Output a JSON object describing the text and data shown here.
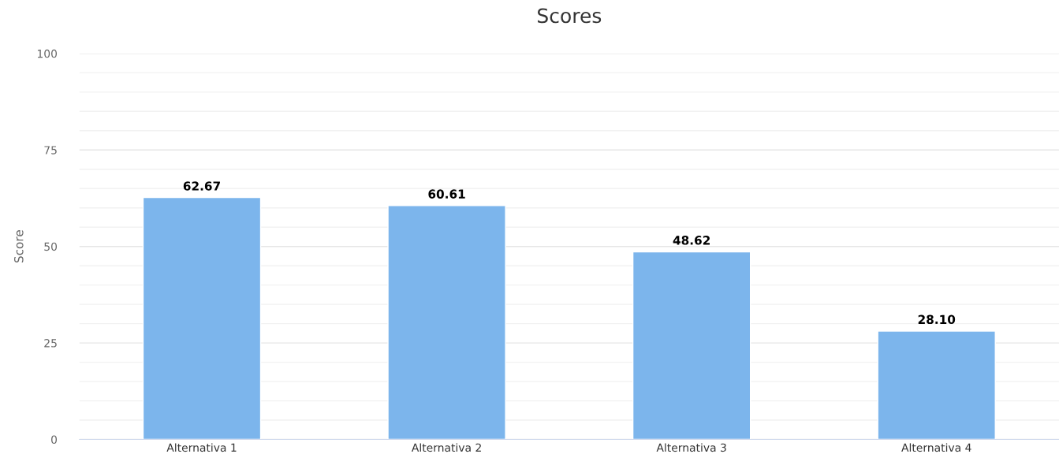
{
  "chart_data": {
    "type": "bar",
    "title": "Scores",
    "ylabel": "Score",
    "categories": [
      "Alternativa 1",
      "Alternativa 2",
      "Alternativa 3",
      "Alternativa 4"
    ],
    "values": [
      62.67,
      60.61,
      48.62,
      28.1
    ],
    "value_labels": [
      "62.67",
      "60.61",
      "48.62",
      "28.10"
    ],
    "color": "#7cb5ec",
    "ylim": [
      0,
      100
    ],
    "yticks": [
      0,
      {
        "value": 5,
        "label": null
      },
      {
        "value": 10,
        "label": null
      },
      {
        "value": 15,
        "label": null
      },
      {
        "value": 20,
        "label": null
      },
      25,
      {
        "value": 30,
        "label": null
      },
      {
        "value": 35,
        "label": null
      },
      {
        "value": 40,
        "label": null
      },
      {
        "value": 45,
        "label": null
      },
      50,
      {
        "value": 55,
        "label": null
      },
      {
        "value": 60,
        "label": null
      },
      {
        "value": 65,
        "label": null
      },
      {
        "value": 70,
        "label": null
      },
      75,
      {
        "value": 80,
        "label": null
      },
      {
        "value": 85,
        "label": null
      },
      {
        "value": 90,
        "label": null
      },
      {
        "value": 95,
        "label": null
      },
      100
    ],
    "grid": "y"
  }
}
